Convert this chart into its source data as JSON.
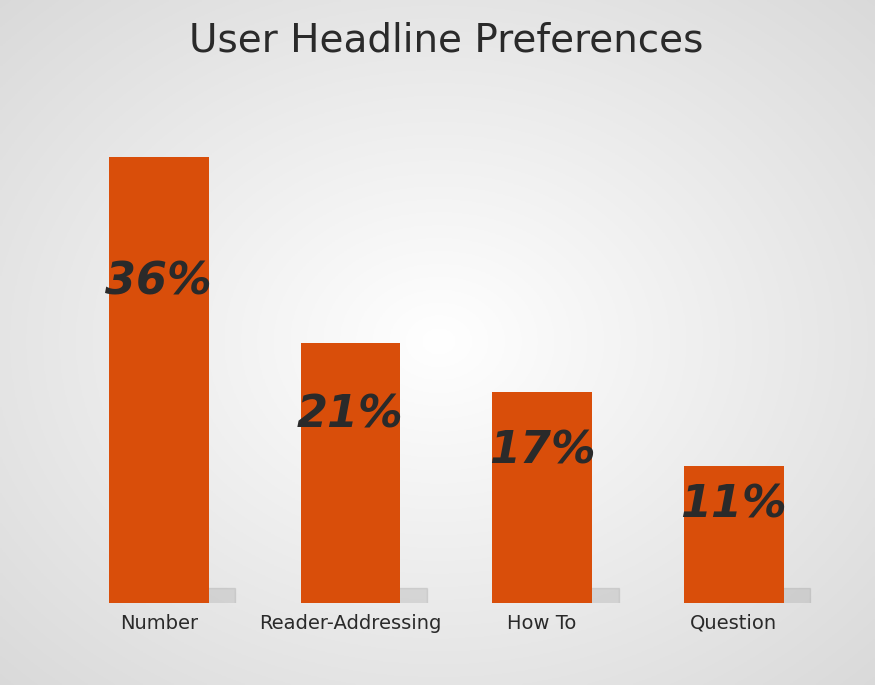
{
  "title": "User Headline Preferences",
  "categories": [
    "Number",
    "Reader-Addressing",
    "How To",
    "Question"
  ],
  "values": [
    36,
    21,
    17,
    11
  ],
  "labels": [
    "36%",
    "21%",
    "17%",
    "11%"
  ],
  "bar_color": "#D94E0A",
  "label_color": "#2a2a2a",
  "title_color": "#2a2a2a",
  "title_fontsize": 28,
  "label_fontsize": 32,
  "tick_fontsize": 14,
  "ylim": [
    0,
    42
  ]
}
